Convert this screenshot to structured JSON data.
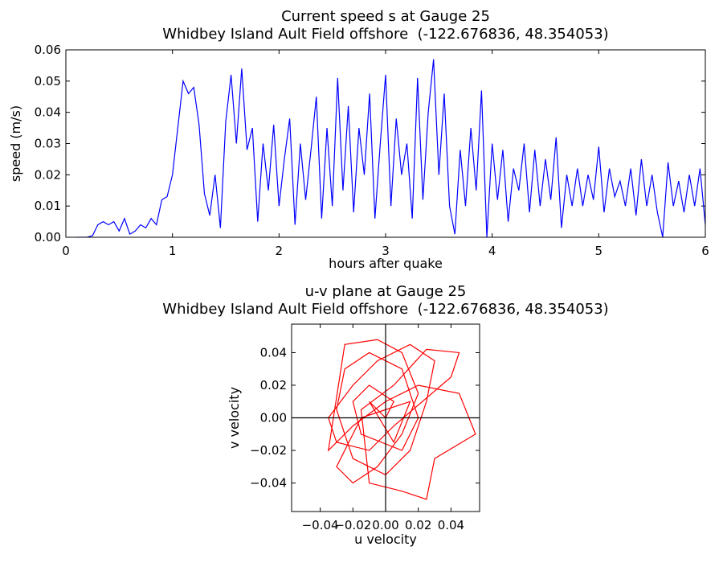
{
  "chart_data": [
    {
      "type": "line",
      "title": "Current speed s at Gauge 25",
      "subtitle": "Whidbey Island Ault Field offshore  (-122.676836, 48.354053)",
      "xlabel": "hours after quake",
      "ylabel": "speed (m/s)",
      "x": [
        0.1,
        0.15,
        0.2,
        0.25,
        0.3,
        0.35,
        0.4,
        0.45,
        0.5,
        0.55,
        0.6,
        0.65,
        0.7,
        0.75,
        0.8,
        0.85,
        0.9,
        0.95,
        1.0,
        1.05,
        1.1,
        1.15,
        1.2,
        1.25,
        1.3,
        1.35,
        1.4,
        1.45,
        1.5,
        1.55,
        1.6,
        1.65,
        1.7,
        1.75,
        1.8,
        1.85,
        1.9,
        1.95,
        2.0,
        2.05,
        2.1,
        2.15,
        2.2,
        2.25,
        2.3,
        2.35,
        2.4,
        2.45,
        2.5,
        2.55,
        2.6,
        2.65,
        2.7,
        2.75,
        2.8,
        2.85,
        2.9,
        2.95,
        3.0,
        3.05,
        3.1,
        3.15,
        3.2,
        3.25,
        3.3,
        3.35,
        3.4,
        3.45,
        3.5,
        3.55,
        3.6,
        3.65,
        3.7,
        3.75,
        3.8,
        3.85,
        3.9,
        3.95,
        4.0,
        4.05,
        4.1,
        4.15,
        4.2,
        4.25,
        4.3,
        4.35,
        4.4,
        4.45,
        4.5,
        4.55,
        4.6,
        4.65,
        4.7,
        4.75,
        4.8,
        4.85,
        4.9,
        4.95,
        5.0,
        5.05,
        5.1,
        5.15,
        5.2,
        5.25,
        5.3,
        5.35,
        5.4,
        5.45,
        5.5,
        5.55,
        5.6,
        5.65,
        5.7,
        5.75,
        5.8,
        5.85,
        5.9,
        5.95,
        6.0
      ],
      "series": [
        {
          "color": "#0000ff",
          "values": [
            0,
            0,
            0,
            0.0005,
            0.004,
            0.005,
            0.004,
            0.005,
            0.002,
            0.006,
            0.001,
            0.002,
            0.004,
            0.003,
            0.006,
            0.004,
            0.012,
            0.013,
            0.02,
            0.035,
            0.05,
            0.046,
            0.048,
            0.036,
            0.014,
            0.007,
            0.02,
            0.003,
            0.037,
            0.052,
            0.03,
            0.054,
            0.028,
            0.035,
            0.005,
            0.03,
            0.015,
            0.036,
            0.01,
            0.025,
            0.038,
            0.004,
            0.03,
            0.012,
            0.028,
            0.045,
            0.006,
            0.035,
            0.01,
            0.051,
            0.015,
            0.042,
            0.008,
            0.035,
            0.02,
            0.046,
            0.006,
            0.03,
            0.052,
            0.01,
            0.038,
            0.02,
            0.03,
            0.006,
            0.051,
            0.012,
            0.04,
            0.057,
            0.02,
            0.046,
            0.01,
            0.001,
            0.028,
            0.01,
            0.035,
            0.015,
            0.047,
            0.0,
            0.03,
            0.012,
            0.028,
            0.005,
            0.022,
            0.015,
            0.03,
            0.008,
            0.028,
            0.01,
            0.025,
            0.012,
            0.032,
            0.003,
            0.02,
            0.01,
            0.022,
            0.01,
            0.02,
            0.012,
            0.029,
            0.008,
            0.022,
            0.013,
            0.018,
            0.01,
            0.022,
            0.007,
            0.025,
            0.01,
            0.02,
            0.008,
            0.0,
            0.024,
            0.01,
            0.018,
            0.008,
            0.02,
            0.01,
            0.022,
            0.004
          ]
        }
      ],
      "xlim": [
        0,
        6
      ],
      "xticks": [
        0,
        1,
        2,
        3,
        4,
        5,
        6
      ],
      "ylim": [
        0,
        0.06
      ],
      "yticks": [
        {
          "value": 0,
          "label": "0.00"
        },
        0.01,
        0.02,
        0.03,
        0.04,
        0.05,
        0.06
      ]
    },
    {
      "type": "line",
      "title": "u-v plane at Gauge 25",
      "subtitle": "Whidbey Island Ault Field offshore  (-122.676836, 48.354053)",
      "xlabel": "u velocity",
      "ylabel": "v velocity",
      "x": [
        0,
        0.005,
        -0.01,
        -0.02,
        -0.015,
        0.01,
        0.02,
        0.01,
        -0.01,
        -0.025,
        -0.03,
        -0.02,
        0,
        0.015,
        0.025,
        0.03,
        0.015,
        -0.005,
        -0.02,
        -0.035,
        -0.03,
        -0.01,
        0.005,
        0.04,
        0.045,
        0.025,
        0.005,
        -0.015,
        -0.01,
        0.01,
        0.025,
        0.03,
        0.055,
        0.045,
        0.02,
        0,
        -0.02,
        -0.035,
        -0.025,
        -0.005,
        0.01,
        0.02,
        0.01,
        -0.005,
        -0.02,
        -0.03,
        -0.015,
        0,
        0.015,
        0.005,
        -0.01,
        0
      ],
      "series": [
        {
          "color": "#ff0000",
          "values": [
            0,
            0.01,
            0.02,
            0.01,
            -0.01,
            -0.02,
            0,
            0.03,
            0.04,
            0.03,
            0.005,
            -0.025,
            -0.035,
            -0.02,
            0.01,
            0.035,
            0.045,
            0.035,
            0.02,
            0,
            -0.015,
            -0.02,
            -0.005,
            0.025,
            0.04,
            0.042,
            0.02,
            0.005,
            -0.04,
            -0.045,
            -0.05,
            -0.025,
            -0.01,
            0.015,
            0.02,
            0.01,
            -0.005,
            -0.02,
            0.045,
            0.048,
            0.04,
            0.015,
            -0.01,
            -0.03,
            -0.04,
            -0.03,
            0,
            0.005,
            0.01,
            -0.015,
            0.01,
            0
          ]
        }
      ],
      "xlim": [
        -0.0575,
        0.0575
      ],
      "xticks": [
        {
          "value": -0.04,
          "label": "−0.04"
        },
        {
          "value": -0.02,
          "label": "−0.02"
        },
        {
          "value": 0,
          "label": "0.00"
        },
        0.02,
        0.04
      ],
      "ylim": [
        -0.0575,
        0.0575
      ],
      "yticks": [
        {
          "value": -0.04,
          "label": "−0.04"
        },
        {
          "value": -0.02,
          "label": "−0.02"
        },
        {
          "value": 0,
          "label": "0.00"
        },
        0.02,
        0.04
      ]
    }
  ]
}
